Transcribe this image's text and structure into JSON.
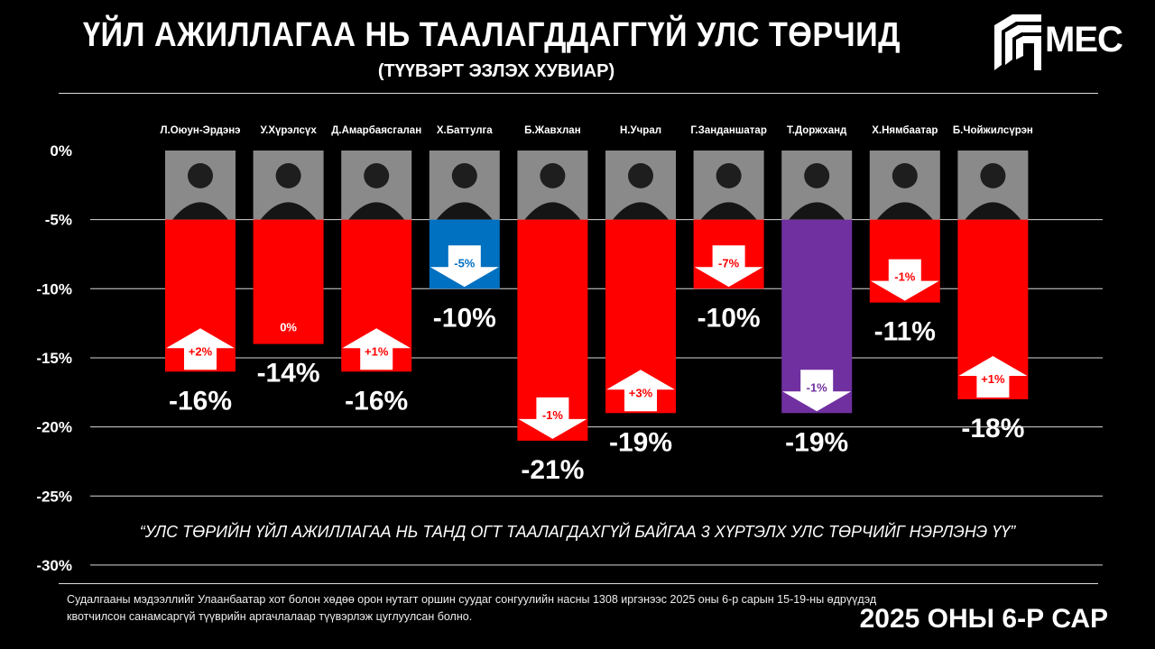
{
  "header": {
    "title": "ҮЙЛ АЖИЛЛАГАА НЬ ТААЛАГДДАГГҮЙ УЛС ТӨРЧИД",
    "subtitle": "(ТҮҮВЭРТ ЭЗЛЭХ ХУВИАР)",
    "logo_text": "MEC"
  },
  "footer": {
    "question": "“УЛС ТӨРИЙН ҮЙЛ АЖИЛЛАГАА НЬ ТАНД ОГТ ТААЛАГДАХГҮЙ БАЙГАА 3 ХҮРТЭЛХ УЛС ТӨРЧИЙГ НЭРЛЭНЭ ҮҮ”",
    "note": "Судалгааны мэдээллийг Улаанбаатар хот болон хөдөө орон нутагт оршин суудаг сонгуулийн насны 1308 иргэнээс 2025 оны 6-р сарын 15-19-ны өдрүүдэд квотчилсон санамсаргүй түүврийн аргачлалаар түүвэрлэж цуглуулсан болно.",
    "date": "2025 ОНЫ 6-Р САР"
  },
  "chart_data": {
    "type": "bar",
    "title": "ҮЙЛ АЖИЛЛАГАА НЬ ТААЛАГДДАГГҮЙ УЛС ТӨРЧИД",
    "ylim": [
      -30,
      0
    ],
    "yticks": [
      0,
      -5,
      -10,
      -15,
      -20,
      -25,
      -30
    ],
    "ytick_labels": [
      "0%",
      "-5%",
      "-10%",
      "-15%",
      "-20%",
      "-25%",
      "-30%"
    ],
    "bar_origin": -5,
    "categories": [
      "Л.Оюун-Эрдэнэ",
      "У.Хүрэлсүх",
      "Д.Амарбаясгалан",
      "Х.Баттулга",
      "Б.Жавхлан",
      "Н.Учрал",
      "Г.Занданшатар",
      "Т.Доржханд",
      "Х.Нямбаатар",
      "Б.Чойжилсүрэн"
    ],
    "values": [
      -16,
      -14,
      -16,
      -10,
      -21,
      -19,
      -10,
      -19,
      -11,
      -18
    ],
    "value_labels": [
      "-16%",
      "-14%",
      "-16%",
      "-10%",
      "-21%",
      "-19%",
      "-10%",
      "-19%",
      "-11%",
      "-18%"
    ],
    "changes": [
      2,
      0,
      1,
      -5,
      -1,
      3,
      -7,
      -1,
      -1,
      1
    ],
    "change_labels": [
      "+2%",
      "0%",
      "+1%",
      "-5%",
      "-1%",
      "+3%",
      "-7%",
      "-1%",
      "-1%",
      "+1%"
    ],
    "colors": [
      "#ff0000",
      "#ff0000",
      "#ff0000",
      "#0070c0",
      "#ff0000",
      "#ff0000",
      "#ff0000",
      "#7030a0",
      "#ff0000",
      "#ff0000"
    ]
  }
}
